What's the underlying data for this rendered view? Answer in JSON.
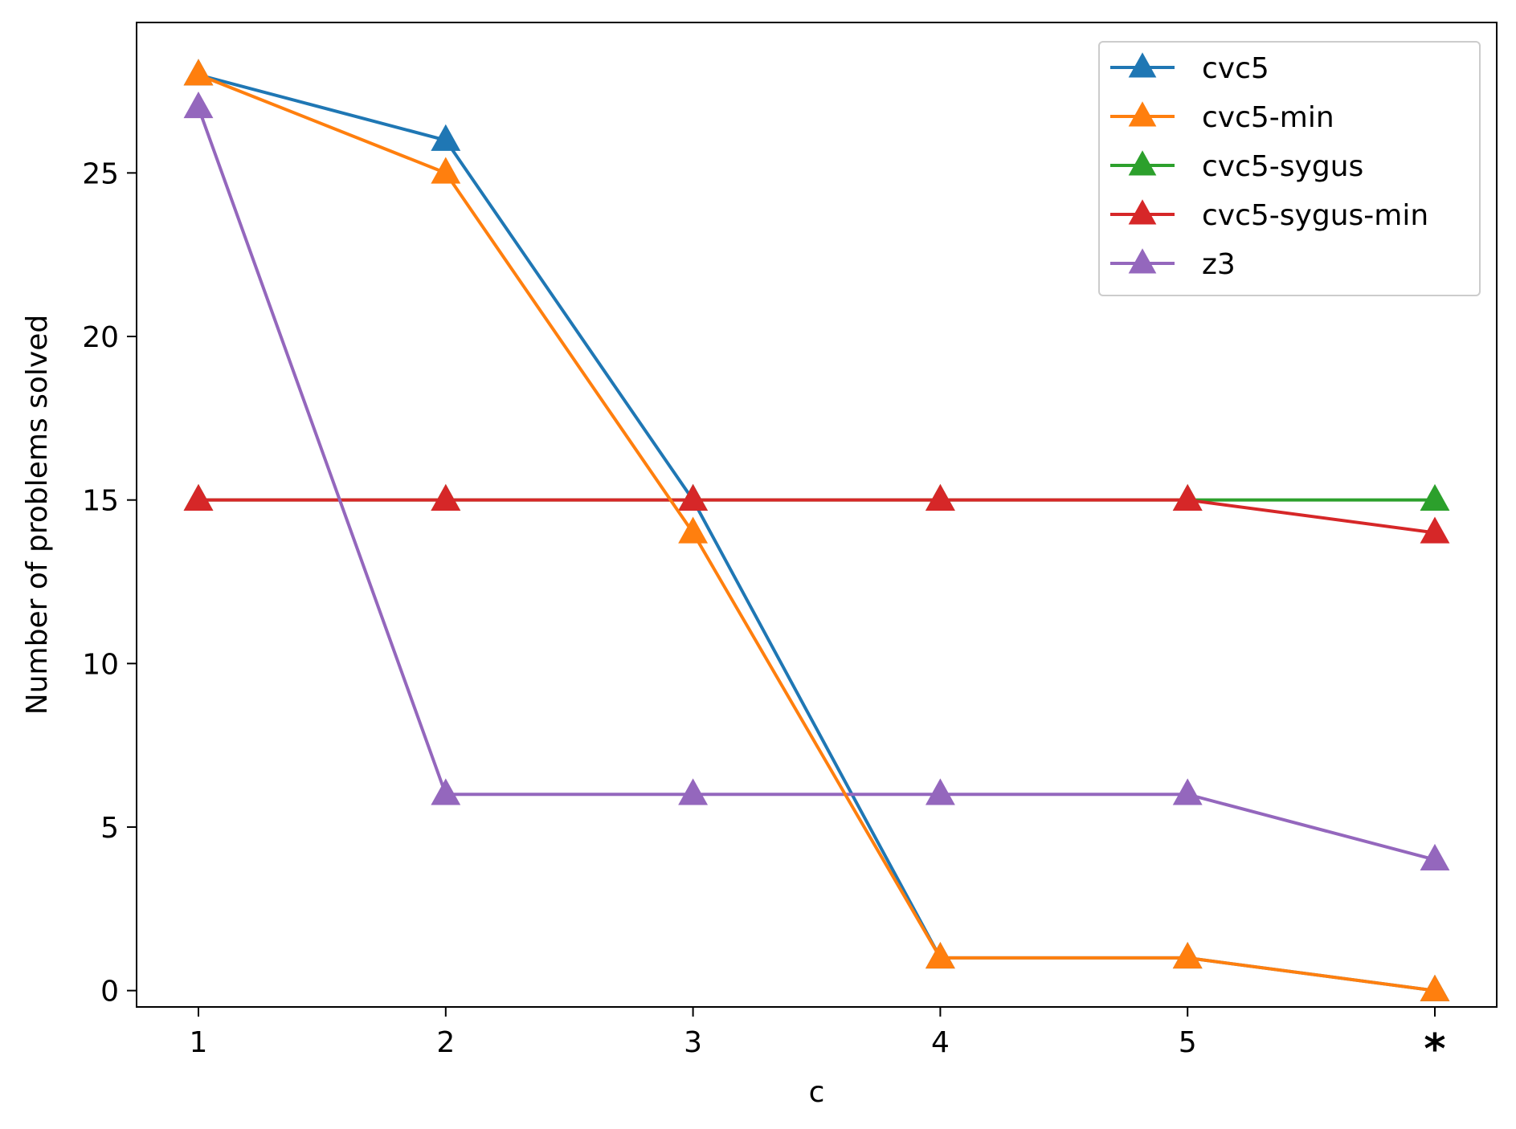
{
  "chart_data": {
    "type": "line",
    "title": "",
    "xlabel": "c",
    "ylabel": "Number of problems solved",
    "x_categories": [
      "1",
      "2",
      "3",
      "4",
      "5",
      "*"
    ],
    "ylim": [
      -0.5,
      29.6
    ],
    "y_ticks": [
      0,
      5,
      10,
      15,
      20,
      25
    ],
    "y_tick_labels": [
      "0",
      "5",
      "10",
      "15",
      "20",
      "25"
    ],
    "grid": false,
    "legend_position": "top-right",
    "marker": "triangle-up",
    "series": [
      {
        "name": "cvc5",
        "color": "#1f77b4",
        "values": [
          28,
          26,
          15,
          1,
          1,
          0
        ]
      },
      {
        "name": "cvc5-min",
        "color": "#ff7f0e",
        "values": [
          28,
          25,
          14,
          1,
          1,
          0
        ]
      },
      {
        "name": "cvc5-sygus",
        "color": "#2ca02c",
        "values": [
          15,
          15,
          15,
          15,
          15,
          15
        ]
      },
      {
        "name": "cvc5-sygus-min",
        "color": "#d62728",
        "values": [
          15,
          15,
          15,
          15,
          15,
          14
        ]
      },
      {
        "name": "z3",
        "color": "#9467bd",
        "values": [
          27,
          6,
          6,
          6,
          6,
          4
        ]
      }
    ],
    "draw_order": [
      "cvc5",
      "cvc5-sygus",
      "cvc5-sygus-min",
      "z3",
      "cvc5-min"
    ]
  }
}
